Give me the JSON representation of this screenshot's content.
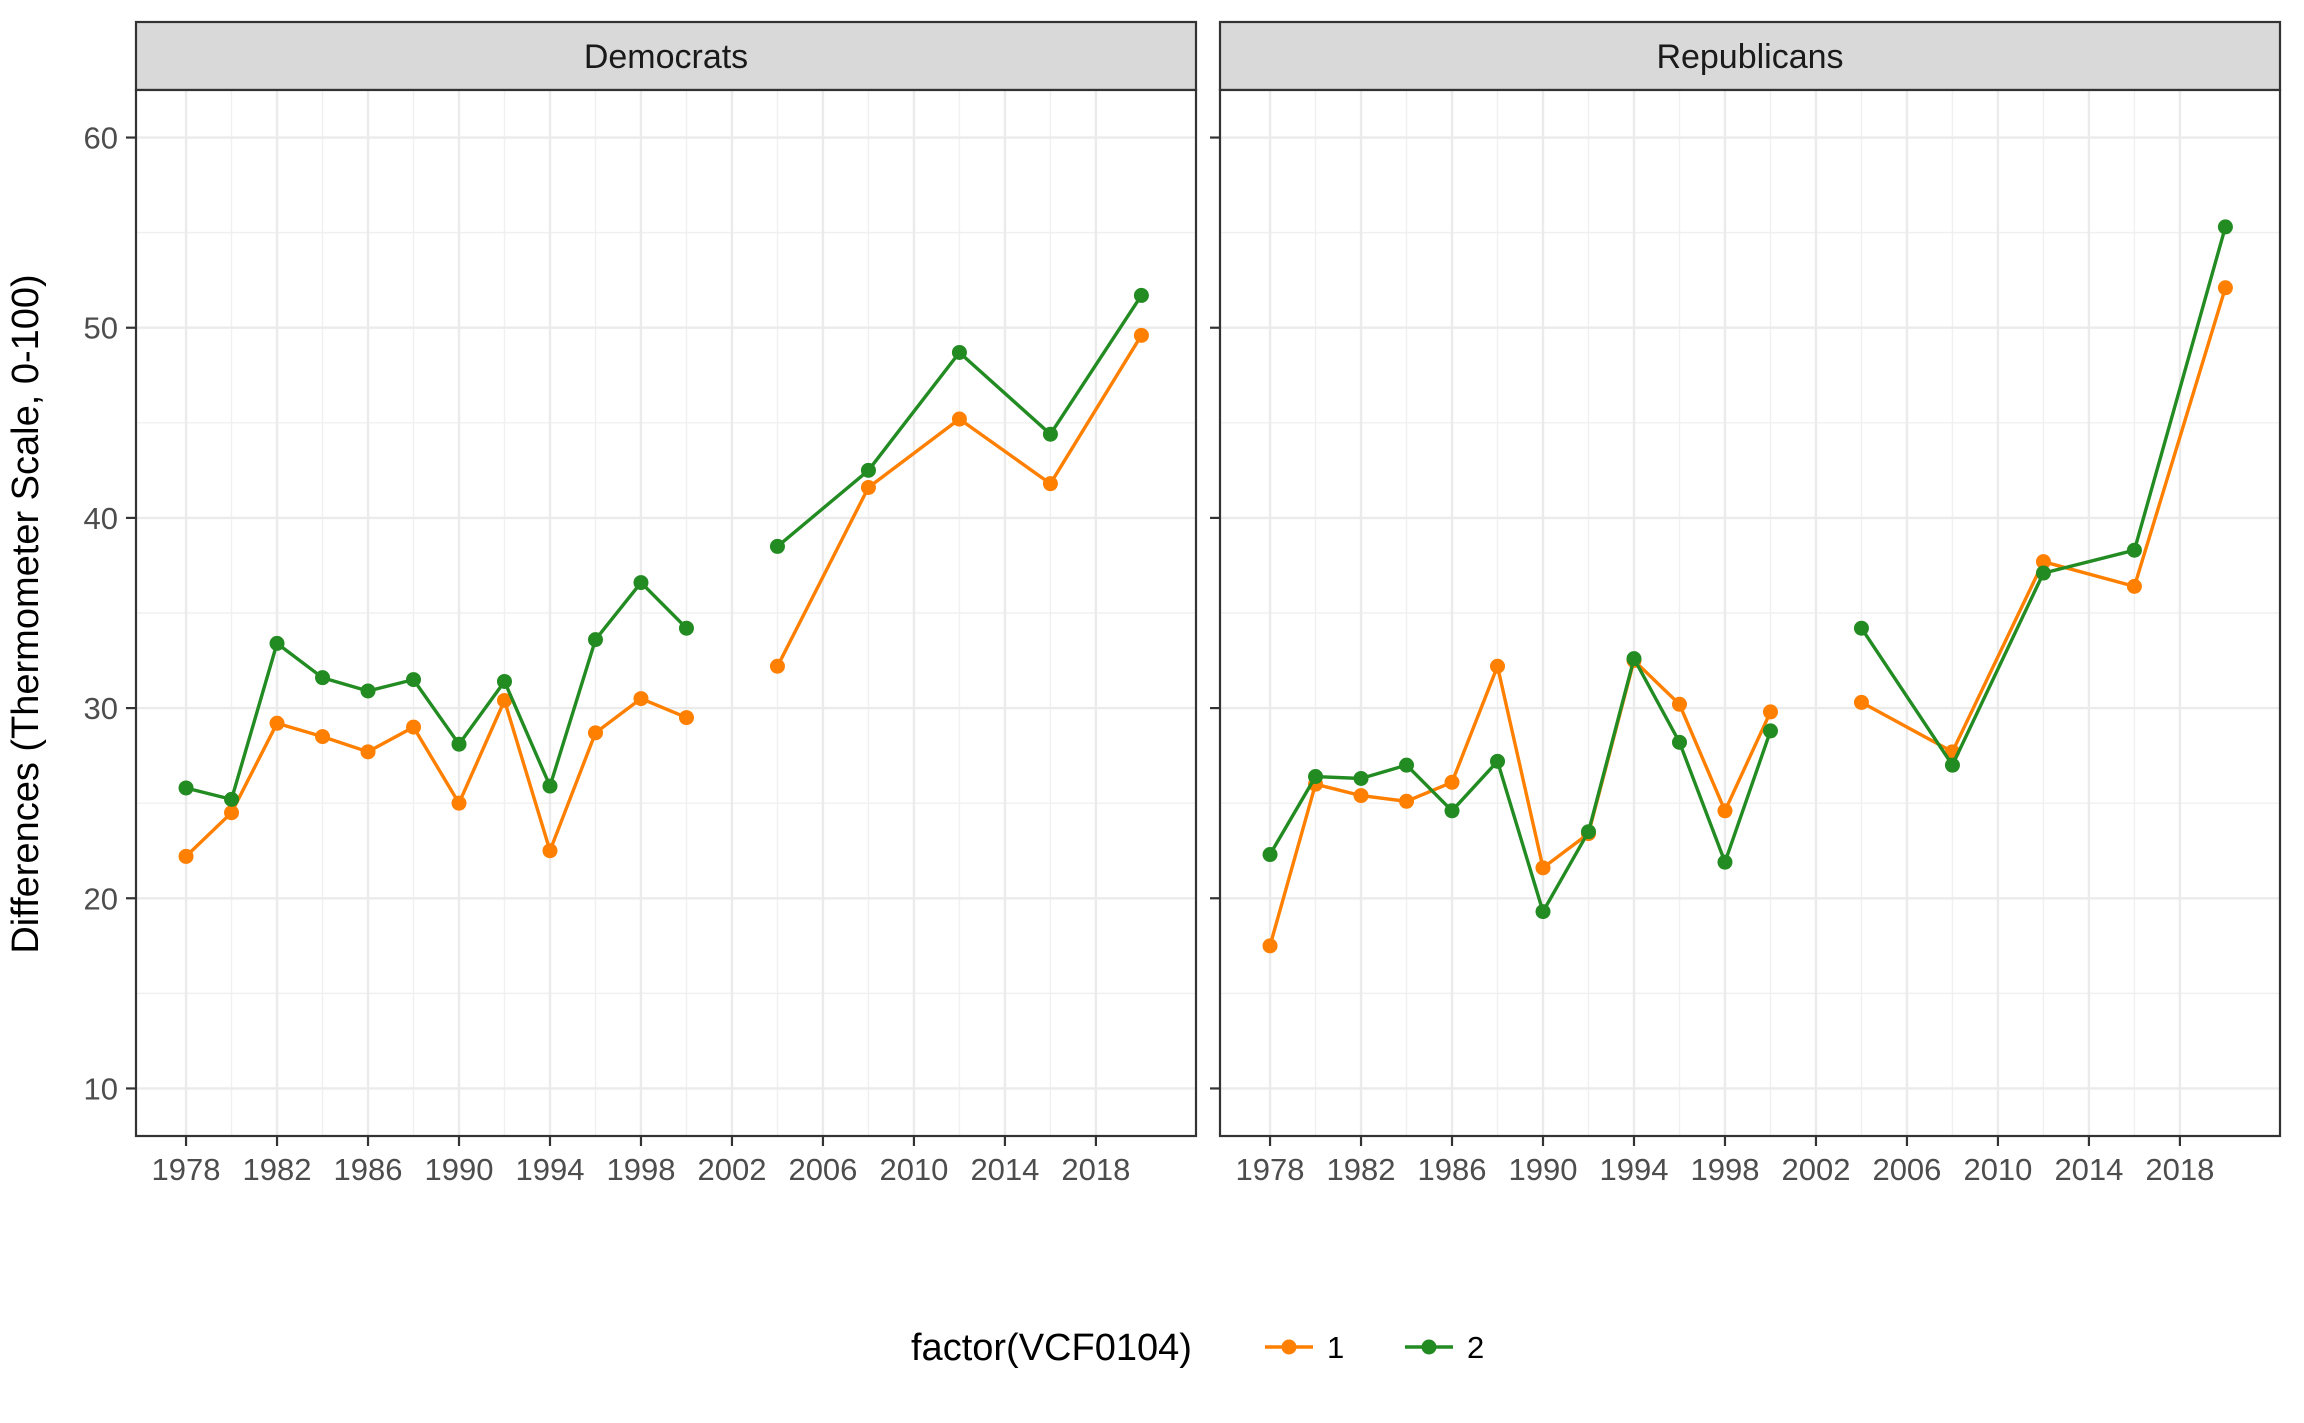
{
  "chart_data": {
    "type": "line",
    "ylabel": "Differences (Thermometer Scale, 0-100)",
    "xlabel": "",
    "x_ticks": [
      1978,
      1982,
      1986,
      1990,
      1994,
      1998,
      2002,
      2006,
      2010,
      2014,
      2018
    ],
    "y_ticks": [
      10,
      20,
      30,
      40,
      50,
      60
    ],
    "xlim": [
      1975.8,
      2022.4
    ],
    "ylim": [
      7.5,
      62.5
    ],
    "grid": true,
    "legend": {
      "title": "factor(VCF0104)",
      "position": "bottom",
      "entries": [
        {
          "label": "1",
          "color": "#FF7F00"
        },
        {
          "label": "2",
          "color": "#228B22"
        }
      ]
    },
    "panels": [
      {
        "title": "Democrats",
        "series": [
          {
            "name": "1",
            "color": "#FF7F00",
            "segments": [
              [
                [
                  1978,
                  22.2
                ],
                [
                  1980,
                  24.5
                ],
                [
                  1982,
                  29.2
                ],
                [
                  1984,
                  28.5
                ],
                [
                  1986,
                  27.7
                ],
                [
                  1988,
                  29.0
                ],
                [
                  1990,
                  25.0
                ],
                [
                  1992,
                  30.4
                ],
                [
                  1994,
                  22.5
                ],
                [
                  1996,
                  28.7
                ],
                [
                  1998,
                  30.5
                ],
                [
                  2000,
                  29.5
                ]
              ],
              [
                [
                  2004,
                  32.2
                ],
                [
                  2008,
                  41.6
                ],
                [
                  2012,
                  45.2
                ],
                [
                  2016,
                  41.8
                ],
                [
                  2020,
                  49.6
                ]
              ]
            ]
          },
          {
            "name": "2",
            "color": "#228B22",
            "segments": [
              [
                [
                  1978,
                  25.8
                ],
                [
                  1980,
                  25.2
                ],
                [
                  1982,
                  33.4
                ],
                [
                  1984,
                  31.6
                ],
                [
                  1986,
                  30.9
                ],
                [
                  1988,
                  31.5
                ],
                [
                  1990,
                  28.1
                ],
                [
                  1992,
                  31.4
                ],
                [
                  1994,
                  25.9
                ],
                [
                  1996,
                  33.6
                ],
                [
                  1998,
                  36.6
                ],
                [
                  2000,
                  34.2
                ]
              ],
              [
                [
                  2004,
                  38.5
                ],
                [
                  2008,
                  42.5
                ],
                [
                  2012,
                  48.7
                ],
                [
                  2016,
                  44.4
                ],
                [
                  2020,
                  51.7
                ]
              ]
            ]
          }
        ]
      },
      {
        "title": "Republicans",
        "series": [
          {
            "name": "1",
            "color": "#FF7F00",
            "segments": [
              [
                [
                  1978,
                  17.5
                ],
                [
                  1980,
                  26.0
                ],
                [
                  1982,
                  25.4
                ],
                [
                  1984,
                  25.1
                ],
                [
                  1986,
                  26.1
                ],
                [
                  1988,
                  32.2
                ],
                [
                  1990,
                  21.6
                ],
                [
                  1992,
                  23.4
                ],
                [
                  1994,
                  32.5
                ],
                [
                  1996,
                  30.2
                ],
                [
                  1998,
                  24.6
                ],
                [
                  2000,
                  29.8
                ]
              ],
              [
                [
                  2004,
                  30.3
                ],
                [
                  2008,
                  27.7
                ],
                [
                  2012,
                  37.7
                ],
                [
                  2016,
                  36.4
                ],
                [
                  2020,
                  52.1
                ]
              ]
            ]
          },
          {
            "name": "2",
            "color": "#228B22",
            "segments": [
              [
                [
                  1978,
                  22.3
                ],
                [
                  1980,
                  26.4
                ],
                [
                  1982,
                  26.3
                ],
                [
                  1984,
                  27.0
                ],
                [
                  1986,
                  24.6
                ],
                [
                  1988,
                  27.2
                ],
                [
                  1990,
                  19.3
                ],
                [
                  1992,
                  23.5
                ],
                [
                  1994,
                  32.6
                ],
                [
                  1996,
                  28.2
                ],
                [
                  1998,
                  21.9
                ],
                [
                  2000,
                  28.8
                ]
              ],
              [
                [
                  2004,
                  34.2
                ],
                [
                  2008,
                  27.0
                ],
                [
                  2012,
                  37.1
                ],
                [
                  2016,
                  38.3
                ],
                [
                  2020,
                  55.3
                ]
              ]
            ]
          }
        ]
      }
    ]
  }
}
